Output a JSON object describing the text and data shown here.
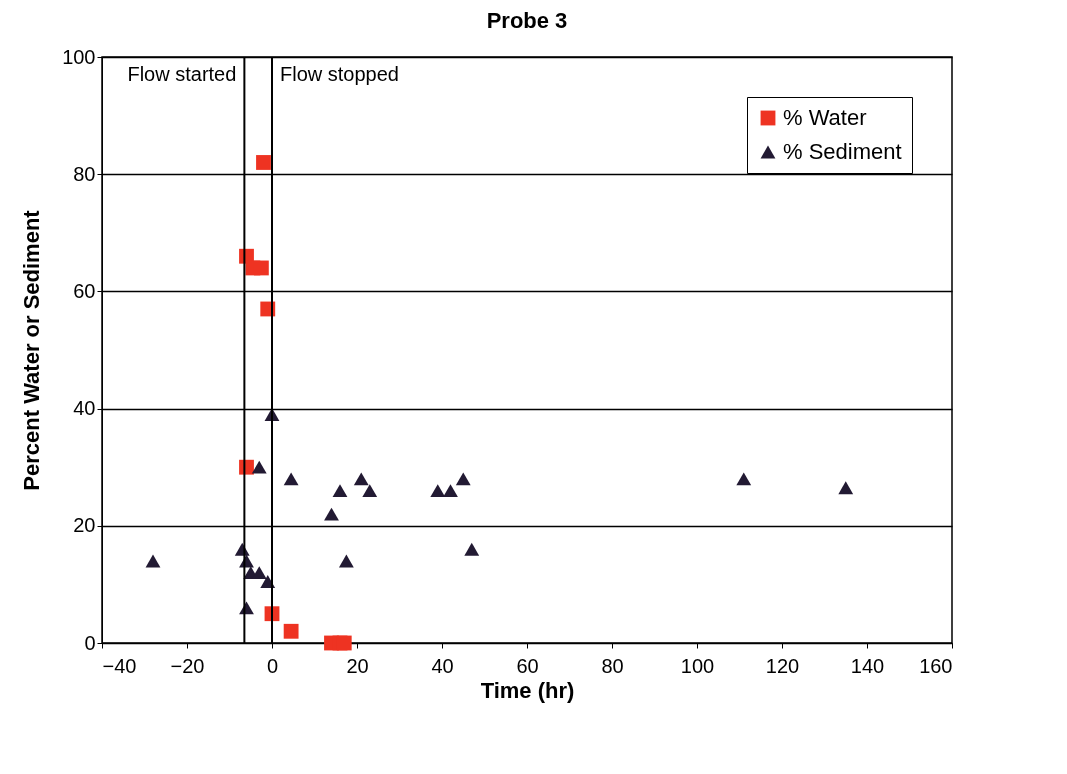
{
  "chart_data": {
    "type": "scatter",
    "title": "Probe 3",
    "xlabel": "Time (hr)",
    "ylabel": "Percent Water or Sediment",
    "xlim": [
      -40,
      160
    ],
    "xticks": [
      -40,
      -20,
      0,
      20,
      40,
      60,
      80,
      100,
      120,
      140,
      160
    ],
    "ylim": [
      0,
      100
    ],
    "yticks": [
      0,
      20,
      40,
      60,
      80,
      100
    ],
    "grid": "y",
    "legend": "top right",
    "series": [
      {
        "name": "% Water",
        "color": "#ee3322",
        "marker": "square",
        "x": [
          -2,
          -6,
          -4.5,
          -2.5,
          -1,
          -6,
          0,
          4.5,
          14,
          16,
          17
        ],
        "values": [
          82,
          66,
          64,
          64,
          57,
          30,
          5,
          2,
          0,
          0,
          0
        ]
      },
      {
        "name": "% Sediment",
        "color": "#221a33",
        "marker": "triangle",
        "x": [
          -28,
          -7,
          -6,
          -5,
          -3,
          -1,
          -6,
          0,
          -3,
          4.5,
          14,
          16,
          17.5,
          21,
          23,
          39,
          42,
          45,
          47,
          111,
          135
        ],
        "values": [
          14,
          16,
          14,
          12,
          12,
          10.5,
          6,
          39,
          30,
          28,
          22,
          26,
          14,
          28,
          26,
          26,
          26,
          28,
          16,
          28,
          26.5
        ]
      }
    ],
    "ref_lines": [
      {
        "axis": "x",
        "value": -6.5,
        "label": "Flow started",
        "color": "#000000"
      },
      {
        "axis": "x",
        "value": 0,
        "label": "Flow stopped",
        "color": "#000000"
      }
    ]
  }
}
